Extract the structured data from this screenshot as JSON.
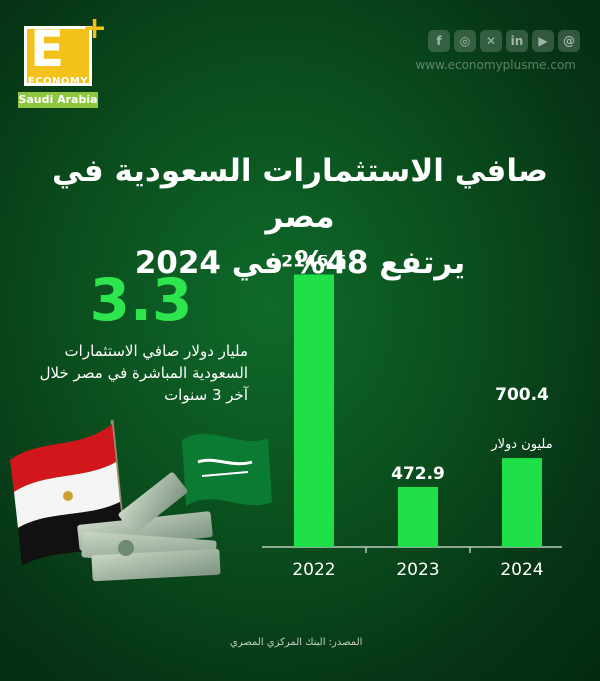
{
  "brand": {
    "letter": "E",
    "plus": "+",
    "word": "ECONOMY",
    "country": "Saudi Arabia",
    "website": "www.economyplusme.com"
  },
  "socials": [
    "facebook-icon",
    "instagram-icon",
    "twitter-icon",
    "linkedin-icon",
    "youtube-icon",
    "threads-icon"
  ],
  "title": {
    "line1": "صافي الاستثمارات السعودية في مصر",
    "line2": "يرتفع 48% في 2024"
  },
  "highlight": {
    "value": "3.3",
    "text": "مليار دولار صافي الاستثمارات السعودية المباشرة في مصر خلال آخر 3 سنوات"
  },
  "chart_data": {
    "type": "bar",
    "categories": [
      "2022",
      "2023",
      "2024"
    ],
    "values": [
      2146.5,
      472.9,
      700.4
    ],
    "data_labels": [
      "2146.5",
      "472.9",
      "700.4"
    ],
    "unit_label": "مليون دولار",
    "title": "",
    "xlabel": "",
    "ylabel": "",
    "ylim": [
      0,
      2300
    ],
    "grid": false,
    "bar_color": "#1fe049"
  },
  "source": "المصدر: البنك المركزي المصري",
  "colors": {
    "background": "#0a4d1d",
    "accent": "#2fe54d",
    "logo_yellow": "#f2c21b"
  }
}
